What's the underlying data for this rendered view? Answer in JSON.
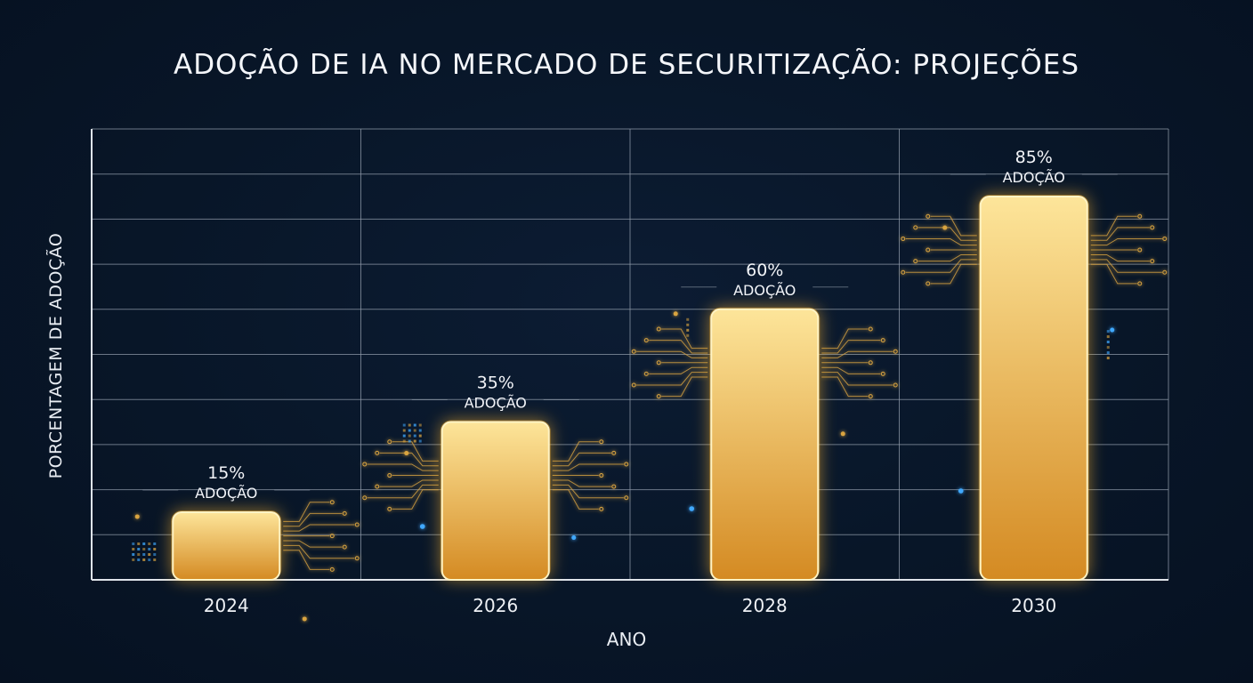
{
  "chart_data": {
    "type": "bar",
    "title": "ADOÇÃO DE IA NO MERCADO DE SECURITIZAÇÃO: PROJEÇÕES",
    "xlabel": "ANO",
    "ylabel": "PORCENTAGEM DE ADOÇÃO",
    "categories": [
      "2024",
      "2026",
      "2028",
      "2030"
    ],
    "values": [
      15,
      35,
      60,
      85
    ],
    "value_labels": [
      "15%",
      "35%",
      "60%",
      "85%"
    ],
    "bar_sublabel": "ADOÇÃO",
    "ylim": [
      0,
      100
    ],
    "grid": true,
    "colors": {
      "background": "#081628",
      "bar_top": "#fde59a",
      "bar_bottom": "#d48a22",
      "glow": "#ffb62e",
      "grid": "#8e99a8",
      "accent_blue": "#3fa9ff"
    }
  }
}
